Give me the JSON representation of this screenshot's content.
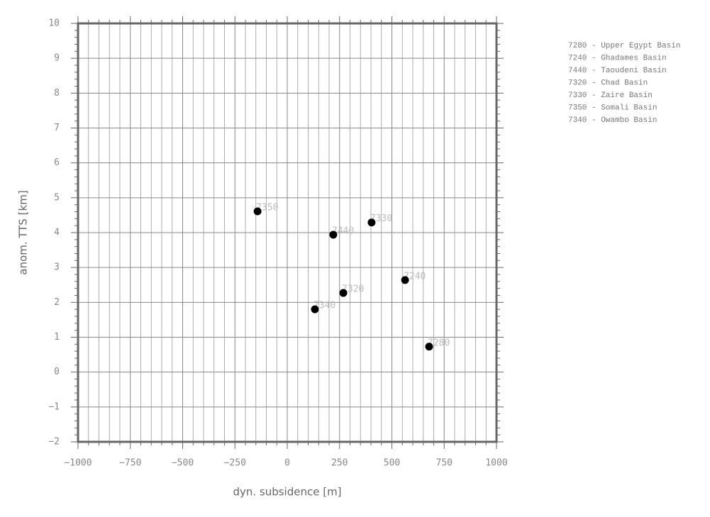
{
  "chart_data": {
    "type": "scatter",
    "xlabel": "dyn. subsidence [m]",
    "ylabel": "anom. TTS [km]",
    "x": [
      678,
      563,
      220,
      268,
      403,
      -142,
      132
    ],
    "values": [
      0.73,
      2.64,
      3.94,
      2.27,
      4.29,
      4.61,
      1.8
    ],
    "labels": [
      "7280",
      "7240",
      "7440",
      "7320",
      "7330",
      "7350",
      "7340"
    ],
    "color": "#000000",
    "legend_text": [
      "7280 - Upper Egypt Basin",
      "7240 - Ghadames Basin",
      "7440 - Taoudeni Basin",
      "7320 - Chad Basin",
      "7330 - Zaire Basin",
      "7350 - Somali Basin",
      "7340 - Owambo Basin"
    ],
    "xlim": [
      -1000,
      1000
    ],
    "xticks": [
      {
        "value": -1000,
        "label": "−1000"
      },
      {
        "value": -750,
        "label": "−750"
      },
      {
        "value": -500,
        "label": "−500"
      },
      {
        "value": -250,
        "label": "−250"
      },
      0,
      250,
      500,
      750,
      1000
    ],
    "ylim": [
      -2,
      10
    ],
    "yticks": [
      {
        "value": -2,
        "label": "−2"
      },
      {
        "value": -1,
        "label": "−1"
      },
      0,
      1,
      2,
      3,
      4,
      5,
      6,
      7,
      8,
      9,
      10
    ],
    "grid": true
  }
}
